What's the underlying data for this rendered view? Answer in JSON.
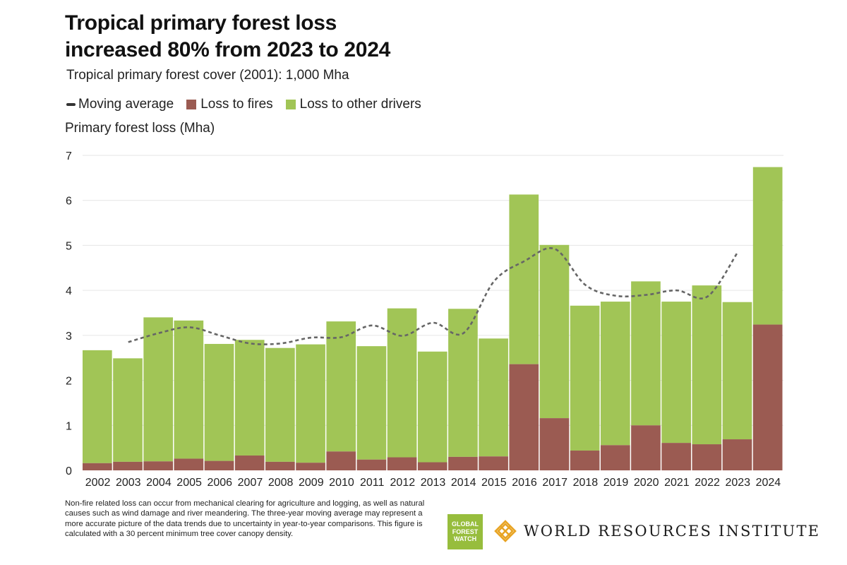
{
  "header": {
    "title_line1": "Tropical primary forest loss",
    "title_line2": "increased 80% from 2023 to 2024",
    "subtitle": "Tropical primary forest cover (2001): 1,000 Mha"
  },
  "legend": {
    "moving_average": "Moving average",
    "fires": "Loss to fires",
    "other": "Loss to other drivers"
  },
  "colors": {
    "fires": "#9b5b52",
    "other": "#a1c556",
    "moving_average": "#666666",
    "gridline": "#e6e6e6"
  },
  "chart_data": {
    "type": "bar",
    "stacked": true,
    "title": "Tropical primary forest loss increased 80% from 2023 to 2024",
    "subtitle": "Tropical primary forest cover (2001): 1,000 Mha",
    "ylabel": "Primary forest loss (Mha)",
    "xlabel": "",
    "ylim": [
      0,
      7
    ],
    "yticks": [
      0,
      1,
      2,
      3,
      4,
      5,
      6,
      7
    ],
    "grid": true,
    "legend_position": "top-left",
    "categories": [
      "2002",
      "2003",
      "2004",
      "2005",
      "2006",
      "2007",
      "2008",
      "2009",
      "2010",
      "2011",
      "2012",
      "2013",
      "2014",
      "2015",
      "2016",
      "2017",
      "2018",
      "2019",
      "2020",
      "2021",
      "2022",
      "2023",
      "2024"
    ],
    "series": [
      {
        "name": "Loss to fires",
        "values": [
          0.16,
          0.19,
          0.2,
          0.26,
          0.21,
          0.33,
          0.19,
          0.17,
          0.42,
          0.24,
          0.29,
          0.18,
          0.3,
          0.31,
          2.36,
          1.16,
          0.44,
          0.56,
          1.0,
          0.61,
          0.58,
          0.69,
          3.24
        ]
      },
      {
        "name": "Loss to other drivers",
        "values": [
          2.51,
          2.3,
          3.2,
          3.07,
          2.6,
          2.57,
          2.53,
          2.63,
          2.89,
          2.52,
          3.31,
          2.46,
          3.29,
          2.62,
          3.77,
          3.85,
          3.22,
          3.19,
          3.2,
          3.14,
          3.53,
          3.05,
          3.5
        ]
      }
    ],
    "moving_average": {
      "name": "Moving average",
      "x": [
        "2003",
        "2004",
        "2005",
        "2006",
        "2007",
        "2008",
        "2009",
        "2010",
        "2011",
        "2012",
        "2013",
        "2014",
        "2015",
        "2016",
        "2017",
        "2018",
        "2019",
        "2020",
        "2021",
        "2022",
        "2023"
      ],
      "values": [
        2.85,
        3.05,
        3.18,
        3.0,
        2.82,
        2.82,
        2.95,
        2.96,
        3.22,
        2.99,
        3.28,
        3.05,
        4.2,
        4.65,
        4.92,
        4.12,
        3.88,
        3.9,
        4.0,
        3.86,
        4.85
      ]
    }
  },
  "footer": {
    "note": "Non-fire related loss can occur from mechanical clearing for agriculture and logging, as well as natural causes such as wind damage and river meandering. The three-year moving average may represent a more accurate picture of the data trends due to uncertainty in year-to-year comparisons. This figure is calculated with a 30 percent minimum tree cover canopy density.",
    "gfw_logo_line1": "GLOBAL",
    "gfw_logo_line2": "FOREST",
    "gfw_logo_line3": "WATCH",
    "wri_name": "WORLD RESOURCES INSTITUTE"
  }
}
